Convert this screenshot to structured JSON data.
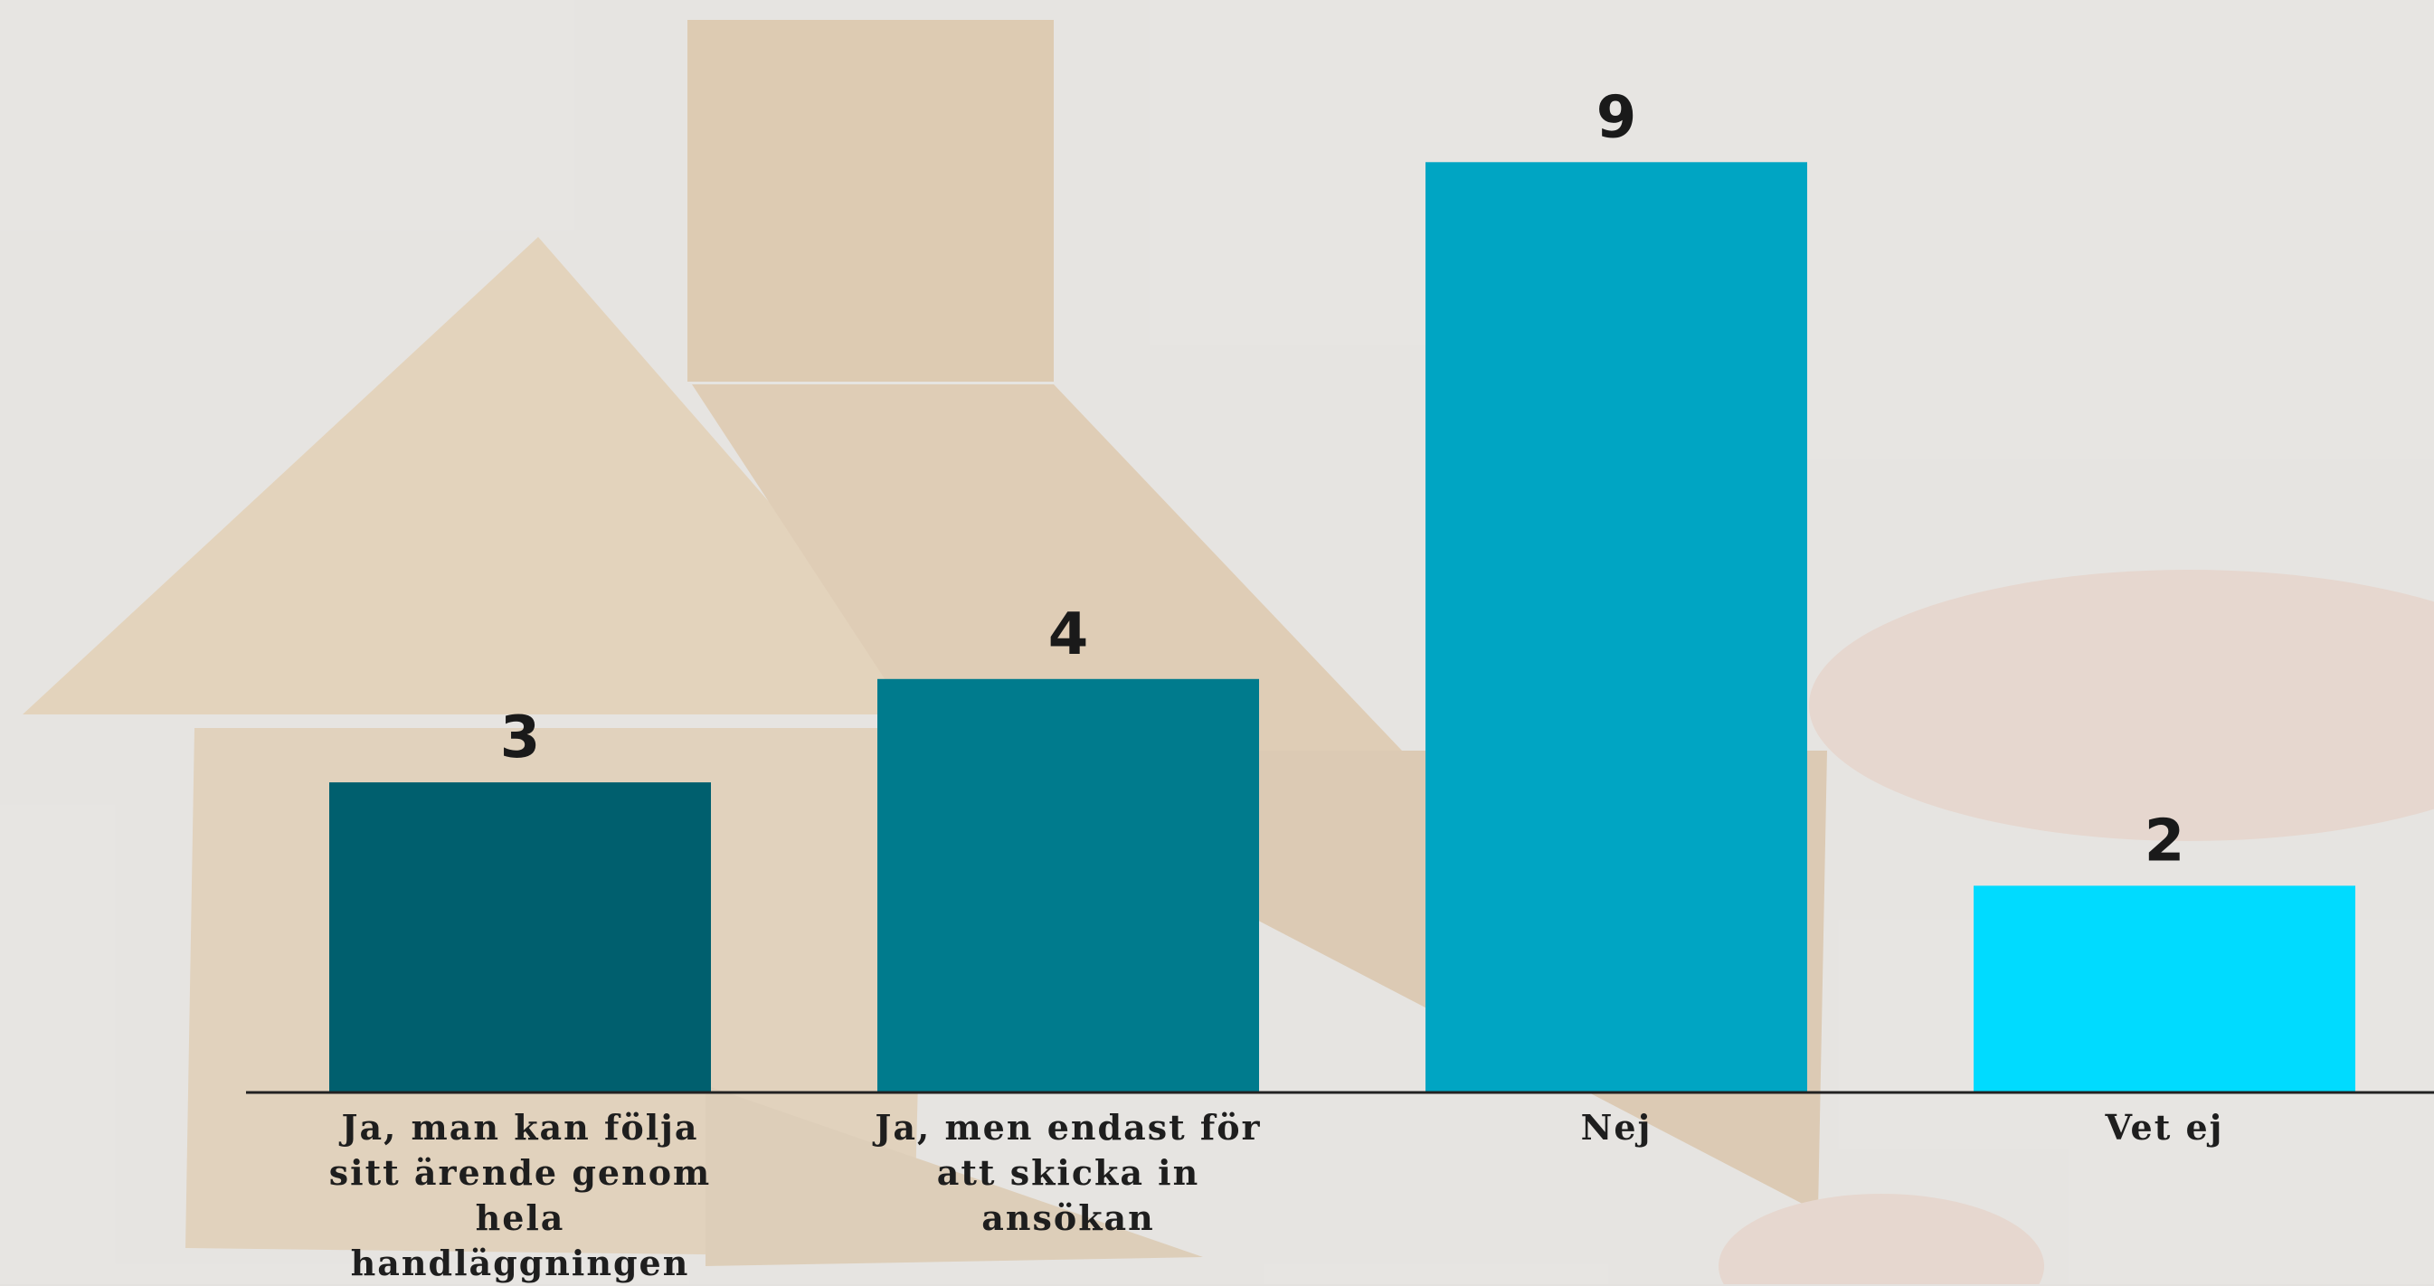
{
  "chart_data": {
    "type": "bar",
    "categories": [
      "Ja, man kan följa sitt ärende genom hela handläggningen",
      "Ja, men endast för att skicka in ansökan",
      "Nej",
      "Vet ej"
    ],
    "values": [
      3,
      4,
      9,
      2
    ],
    "colors": [
      "#005f6e",
      "#007b8d",
      "#00a5c3",
      "#00dbff"
    ],
    "ylim": [
      0,
      10
    ]
  }
}
